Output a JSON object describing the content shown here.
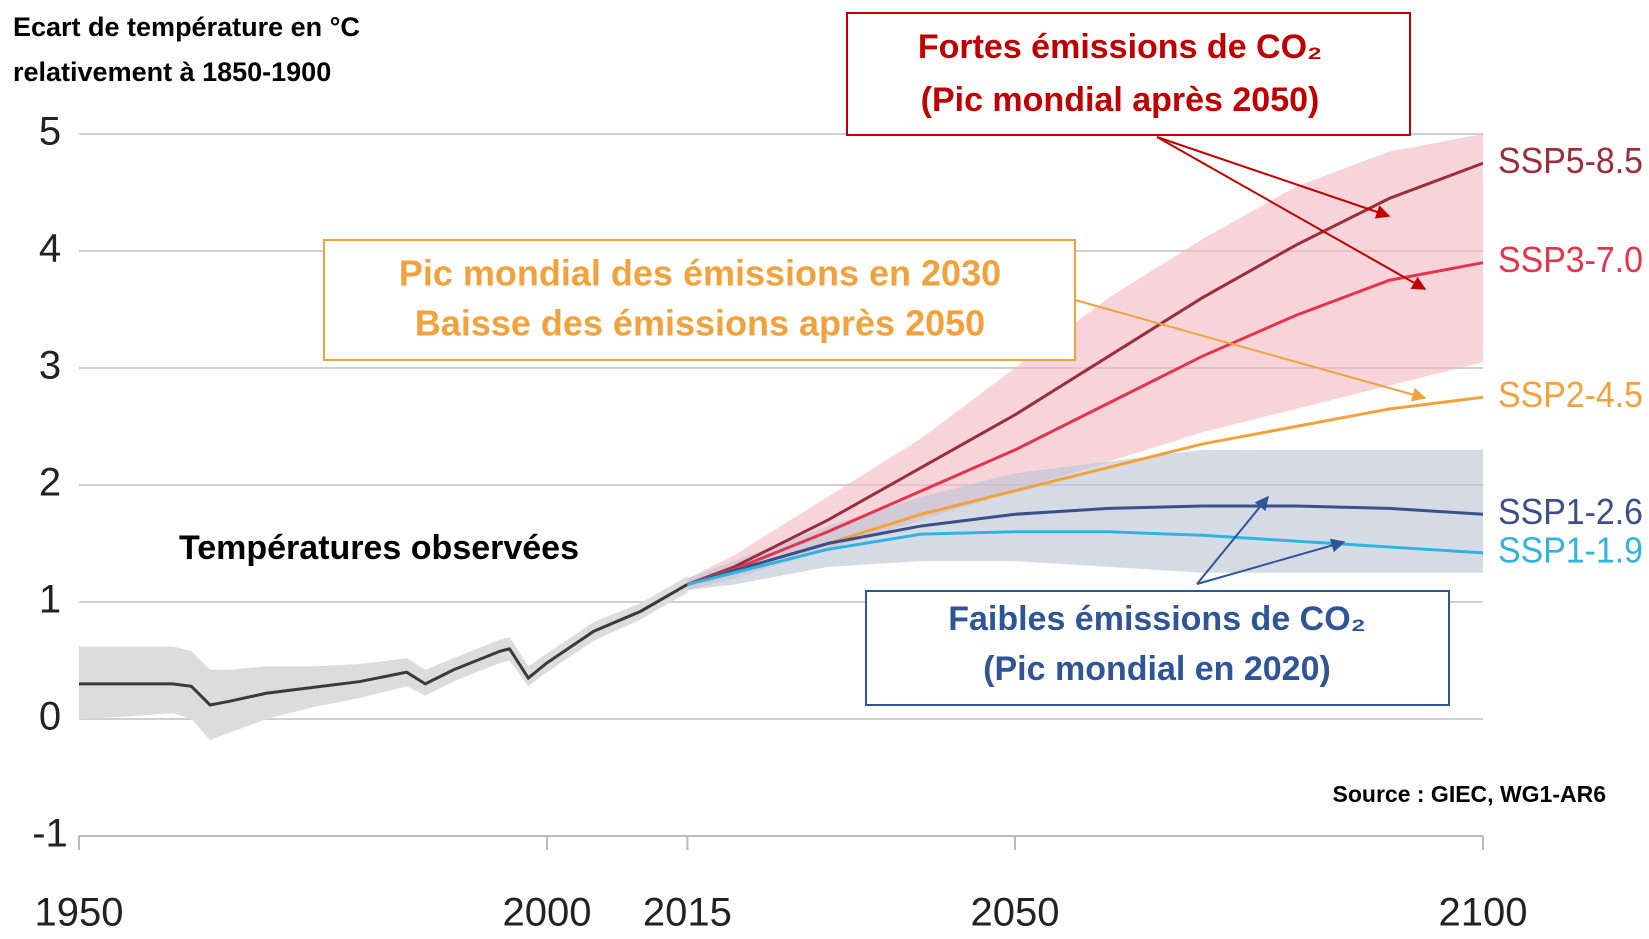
{
  "chart_data": {
    "type": "line",
    "ylabel": [
      "Ecart de température en °C",
      "relativement à 1850-1900"
    ],
    "xlim": [
      1950,
      2100
    ],
    "xticks": [
      1950,
      2000,
      2015,
      2050,
      2100
    ],
    "ylim": [
      -1,
      5
    ],
    "yticks": [
      -1,
      0,
      1,
      2,
      3,
      4,
      5
    ],
    "grid": true,
    "observed": {
      "name": "Températures observées",
      "color": "#3a3a3a",
      "band_color": "#dcdcdc",
      "x": [
        1950,
        1955,
        1960,
        1962,
        1964,
        1966,
        1970,
        1975,
        1980,
        1985,
        1987,
        1990,
        1995,
        1996,
        1998,
        2000,
        2005,
        2010,
        2015
      ],
      "values": [
        0.3,
        0.3,
        0.3,
        0.28,
        0.12,
        0.15,
        0.22,
        0.27,
        0.32,
        0.4,
        0.3,
        0.42,
        0.58,
        0.6,
        0.35,
        0.48,
        0.75,
        0.92,
        1.15
      ],
      "lower": [
        0.0,
        0.02,
        0.05,
        0.0,
        -0.18,
        -0.12,
        0.0,
        0.1,
        0.18,
        0.28,
        0.2,
        0.32,
        0.48,
        0.5,
        0.28,
        0.4,
        0.67,
        0.85,
        1.08
      ],
      "upper": [
        0.62,
        0.62,
        0.62,
        0.58,
        0.42,
        0.42,
        0.45,
        0.45,
        0.47,
        0.52,
        0.42,
        0.52,
        0.68,
        0.7,
        0.45,
        0.56,
        0.83,
        0.99,
        1.22
      ]
    },
    "scenario_x": [
      2015,
      2020,
      2030,
      2040,
      2050,
      2060,
      2070,
      2080,
      2090,
      2100
    ],
    "bands": [
      {
        "color": "#f2b8c0",
        "lower": [
          1.1,
          1.2,
          1.45,
          1.7,
          1.95,
          2.2,
          2.45,
          2.65,
          2.85,
          3.05
        ],
        "upper": [
          1.2,
          1.4,
          1.9,
          2.4,
          3.0,
          3.6,
          4.1,
          4.55,
          4.85,
          5.0
        ]
      },
      {
        "color": "#b9c3d3",
        "lower": [
          1.1,
          1.15,
          1.3,
          1.35,
          1.35,
          1.3,
          1.25,
          1.25,
          1.25,
          1.25
        ],
        "upper": [
          1.2,
          1.35,
          1.65,
          1.9,
          2.1,
          2.2,
          2.3,
          2.3,
          2.3,
          2.3
        ]
      }
    ],
    "series": [
      {
        "name": "SSP5-8.5",
        "color": "#9b2d3c",
        "values": [
          1.15,
          1.3,
          1.7,
          2.15,
          2.6,
          3.1,
          3.6,
          4.05,
          4.45,
          4.75
        ]
      },
      {
        "name": "SSP3-7.0",
        "color": "#e6334d",
        "values": [
          1.15,
          1.28,
          1.6,
          1.95,
          2.3,
          2.7,
          3.1,
          3.45,
          3.75,
          3.9
        ]
      },
      {
        "name": "SSP2-4.5",
        "color": "#f2a23c",
        "values": [
          1.15,
          1.27,
          1.5,
          1.75,
          1.95,
          2.15,
          2.35,
          2.5,
          2.65,
          2.75
        ]
      },
      {
        "name": "SSP1-2.6",
        "color": "#3d4f8a",
        "values": [
          1.15,
          1.27,
          1.5,
          1.65,
          1.75,
          1.8,
          1.82,
          1.82,
          1.8,
          1.75
        ]
      },
      {
        "name": "SSP1-1.9",
        "color": "#2fb4e0",
        "values": [
          1.15,
          1.25,
          1.45,
          1.58,
          1.6,
          1.6,
          1.57,
          1.52,
          1.47,
          1.42
        ]
      }
    ],
    "annotations": {
      "high": [
        "Fortes émissions de CO₂",
        "(Pic mondial après 2050)"
      ],
      "mid": [
        "Pic mondial des émissions en 2030",
        "Baisse des émissions après 2050"
      ],
      "low": [
        "Faibles émissions de CO₂",
        "(Pic mondial en 2020)"
      ],
      "source": "Source : GIEC, WG1-AR6"
    }
  }
}
